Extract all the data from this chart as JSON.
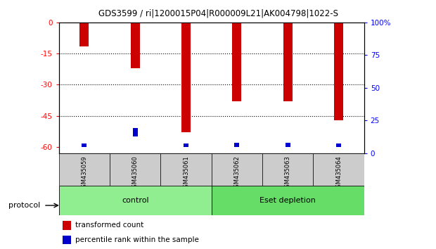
{
  "title": "GDS3599 / ri|1200015P04|R000009L21|AK004798|1022-S",
  "samples": [
    "GSM435059",
    "GSM435060",
    "GSM435061",
    "GSM435062",
    "GSM435063",
    "GSM435064"
  ],
  "red_values": [
    -11.5,
    -22.0,
    -53.0,
    -38.0,
    -38.0,
    -47.0
  ],
  "blue_bottom": [
    -60.0,
    -55.0,
    -60.0,
    -60.0,
    -60.0,
    -60.0
  ],
  "blue_heights": [
    1.5,
    4.0,
    1.5,
    2.0,
    2.0,
    1.5
  ],
  "left_yticks": [
    0,
    -15,
    -30,
    -45,
    -60
  ],
  "right_yticks": [
    0,
    25,
    50,
    75,
    100
  ],
  "right_ytick_labels": [
    "0",
    "25",
    "50",
    "75",
    "100%"
  ],
  "ylim": [
    -63,
    0
  ],
  "red_color": "#CC0000",
  "blue_color": "#0000CC",
  "legend_red_label": "transformed count",
  "legend_blue_label": "percentile rank within the sample",
  "bar_width": 0.18,
  "protocol_label": "protocol",
  "group_configs": [
    {
      "start": 0,
      "end": 2,
      "label": "control",
      "color": "#90EE90"
    },
    {
      "start": 3,
      "end": 5,
      "label": "Eset depletion",
      "color": "#66DD66"
    }
  ]
}
